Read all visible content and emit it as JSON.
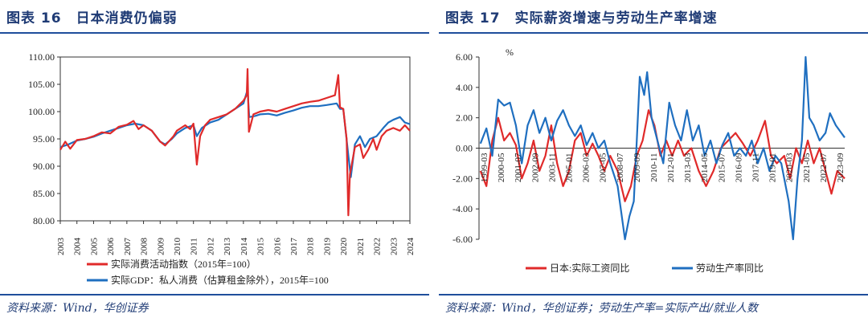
{
  "left": {
    "figure_title": "图表 16　日本消费仍偏弱",
    "source": "资料来源：Wind，华创证券"
  },
  "right": {
    "figure_title": "图表 17　实际薪资增速与劳动生产率增速",
    "source": "资料来源：Wind，华创证券；劳动生产率=实际产出/就业人数"
  },
  "colors": {
    "red": "#e02a2a",
    "blue": "#1f6fc0",
    "brand": "#1f3b75"
  },
  "chart_data": [
    {
      "type": "line",
      "ylim": [
        80,
        110
      ],
      "yticks": [
        "110.00",
        "105.00",
        "100.00",
        "95.00",
        "90.00",
        "85.00",
        "80.00"
      ],
      "xticks": [
        "2003",
        "2004",
        "2005",
        "2006",
        "2007",
        "2008",
        "2009",
        "2010",
        "2011",
        "2012",
        "2013",
        "2014",
        "2015",
        "2016",
        "2017",
        "2018",
        "2019",
        "2020",
        "2021",
        "2022",
        "2023",
        "2024"
      ],
      "xlim": [
        2003,
        2024
      ],
      "legend_position": "bottom",
      "series": [
        {
          "name": "实际消费活动指数（2015年=100）",
          "color": "#e02a2a",
          "points": [
            [
              2003,
              93.0
            ],
            [
              2003.3,
              94.5
            ],
            [
              2003.6,
              93.2
            ],
            [
              2004,
              94.8
            ],
            [
              2004.5,
              95.0
            ],
            [
              2005,
              95.5
            ],
            [
              2005.5,
              96.2
            ],
            [
              2006,
              96.0
            ],
            [
              2006.5,
              97.2
            ],
            [
              2007,
              97.6
            ],
            [
              2007.4,
              98.3
            ],
            [
              2007.7,
              96.8
            ],
            [
              2008,
              97.5
            ],
            [
              2008.5,
              96.5
            ],
            [
              2009,
              94.5
            ],
            [
              2009.3,
              93.8
            ],
            [
              2009.8,
              95.5
            ],
            [
              2010,
              96.5
            ],
            [
              2010.5,
              97.5
            ],
            [
              2010.8,
              96.8
            ],
            [
              2011,
              97.8
            ],
            [
              2011.2,
              90.3
            ],
            [
              2011.4,
              95.5
            ],
            [
              2011.7,
              97.5
            ],
            [
              2012,
              98.5
            ],
            [
              2012.5,
              99.0
            ],
            [
              2013,
              99.5
            ],
            [
              2013.5,
              100.5
            ],
            [
              2014,
              102.0
            ],
            [
              2014.2,
              103.0
            ],
            [
              2014.25,
              107.8
            ],
            [
              2014.33,
              96.3
            ],
            [
              2014.6,
              99.5
            ],
            [
              2015,
              100.0
            ],
            [
              2015.5,
              100.3
            ],
            [
              2016,
              100.0
            ],
            [
              2016.5,
              100.5
            ],
            [
              2017,
              101.0
            ],
            [
              2017.5,
              101.5
            ],
            [
              2018,
              101.8
            ],
            [
              2018.5,
              102.0
            ],
            [
              2019,
              102.5
            ],
            [
              2019.5,
              103.0
            ],
            [
              2019.7,
              106.7
            ],
            [
              2019.8,
              100.8
            ],
            [
              2020,
              100.5
            ],
            [
              2020.2,
              95.0
            ],
            [
              2020.3,
              81.0
            ],
            [
              2020.4,
              88.5
            ],
            [
              2020.7,
              93.5
            ],
            [
              2021,
              94.0
            ],
            [
              2021.2,
              91.5
            ],
            [
              2021.5,
              93.0
            ],
            [
              2021.8,
              95.0
            ],
            [
              2022,
              93.0
            ],
            [
              2022.3,
              95.5
            ],
            [
              2022.6,
              96.5
            ],
            [
              2023,
              97.0
            ],
            [
              2023.4,
              96.5
            ],
            [
              2023.7,
              97.5
            ],
            [
              2024,
              96.5
            ]
          ]
        },
        {
          "name": "实际GDP：私人消费（估算租金除外），2015年=100",
          "color": "#1f6fc0",
          "points": [
            [
              2003,
              93.5
            ],
            [
              2003.5,
              94.0
            ],
            [
              2004,
              94.7
            ],
            [
              2004.5,
              95.0
            ],
            [
              2005,
              95.4
            ],
            [
              2005.5,
              96.0
            ],
            [
              2006,
              96.5
            ],
            [
              2006.5,
              97.0
            ],
            [
              2007,
              97.5
            ],
            [
              2007.5,
              97.8
            ],
            [
              2008,
              97.5
            ],
            [
              2008.5,
              96.5
            ],
            [
              2009,
              94.5
            ],
            [
              2009.3,
              94.0
            ],
            [
              2009.7,
              95.0
            ],
            [
              2010,
              96.0
            ],
            [
              2010.5,
              97.0
            ],
            [
              2011,
              97.5
            ],
            [
              2011.2,
              95.5
            ],
            [
              2011.5,
              97.0
            ],
            [
              2012,
              98.0
            ],
            [
              2012.5,
              98.5
            ],
            [
              2013,
              99.5
            ],
            [
              2013.5,
              100.5
            ],
            [
              2014,
              101.5
            ],
            [
              2014.25,
              104.0
            ],
            [
              2014.35,
              99.0
            ],
            [
              2014.7,
              99.2
            ],
            [
              2015,
              99.5
            ],
            [
              2015.5,
              99.6
            ],
            [
              2016,
              99.3
            ],
            [
              2016.5,
              99.8
            ],
            [
              2017,
              100.2
            ],
            [
              2017.5,
              100.7
            ],
            [
              2018,
              101.0
            ],
            [
              2018.5,
              101.0
            ],
            [
              2019,
              101.2
            ],
            [
              2019.6,
              101.5
            ],
            [
              2019.8,
              100.5
            ],
            [
              2020,
              100.5
            ],
            [
              2020.3,
              92.0
            ],
            [
              2020.45,
              88.0
            ],
            [
              2020.7,
              94.0
            ],
            [
              2021,
              95.5
            ],
            [
              2021.3,
              93.5
            ],
            [
              2021.6,
              95.0
            ],
            [
              2022,
              95.5
            ],
            [
              2022.4,
              97.0
            ],
            [
              2022.7,
              98.0
            ],
            [
              2023,
              98.5
            ],
            [
              2023.4,
              99.0
            ],
            [
              2023.7,
              98.0
            ],
            [
              2024,
              97.7
            ]
          ]
        }
      ]
    },
    {
      "type": "line",
      "ylabel": "%",
      "ylim": [
        -6,
        6
      ],
      "yticks": [
        "6.00",
        "4.00",
        "2.00",
        "0.00",
        "-2.00",
        "-4.00",
        "-6.00"
      ],
      "xticks": [
        "1999-03",
        "2000-05",
        "2001-07",
        "2002-09",
        "2003-11",
        "2005-01",
        "2006-03",
        "2007-05",
        "2008-07",
        "2009-09",
        "2010-11",
        "2012-01",
        "2013-03",
        "2014-05",
        "2015-07",
        "2016-09",
        "2017-11",
        "2019-01",
        "2020-03",
        "2021-05",
        "2022-07",
        "2023-09"
      ],
      "xlim": [
        1999.1,
        2023.9
      ],
      "legend_position": "bottom",
      "series": [
        {
          "name": "日本:实际工资同比",
          "color": "#e02a2a",
          "points": [
            [
              1999.2,
              -1.5
            ],
            [
              1999.6,
              -2.5
            ],
            [
              2000,
              0.5
            ],
            [
              2000.4,
              2.0
            ],
            [
              2000.8,
              0.5
            ],
            [
              2001.2,
              1.0
            ],
            [
              2001.6,
              0.2
            ],
            [
              2002,
              -2.0
            ],
            [
              2002.4,
              -1.0
            ],
            [
              2002.8,
              0.5
            ],
            [
              2003.2,
              -1.5
            ],
            [
              2003.6,
              -0.5
            ],
            [
              2004,
              1.5
            ],
            [
              2004.4,
              -1.0
            ],
            [
              2004.8,
              -2.5
            ],
            [
              2005.2,
              -1.5
            ],
            [
              2005.6,
              0.5
            ],
            [
              2006,
              1.0
            ],
            [
              2006.4,
              -0.5
            ],
            [
              2006.8,
              0.3
            ],
            [
              2007.2,
              -0.5
            ],
            [
              2007.6,
              -1.5
            ],
            [
              2008,
              -0.5
            ],
            [
              2008.5,
              -1.5
            ],
            [
              2009,
              -3.5
            ],
            [
              2009.4,
              -2.5
            ],
            [
              2009.8,
              -0.5
            ],
            [
              2010.2,
              0.5
            ],
            [
              2010.6,
              2.5
            ],
            [
              2011,
              1.5
            ],
            [
              2011.4,
              -0.5
            ],
            [
              2011.8,
              0.5
            ],
            [
              2012.2,
              -0.5
            ],
            [
              2012.6,
              0.5
            ],
            [
              2013,
              -0.5
            ],
            [
              2013.5,
              0.0
            ],
            [
              2014,
              -1.5
            ],
            [
              2014.5,
              -2.5
            ],
            [
              2015,
              -1.5
            ],
            [
              2015.5,
              0.0
            ],
            [
              2016,
              0.5
            ],
            [
              2016.5,
              1.0
            ],
            [
              2017,
              0.3
            ],
            [
              2017.5,
              -0.5
            ],
            [
              2018,
              0.5
            ],
            [
              2018.5,
              1.8
            ],
            [
              2018.9,
              -0.5
            ],
            [
              2019.3,
              -1.0
            ],
            [
              2019.8,
              -0.5
            ],
            [
              2020.2,
              -2.0
            ],
            [
              2020.6,
              0.0
            ],
            [
              2021,
              -1.0
            ],
            [
              2021.4,
              0.5
            ],
            [
              2021.8,
              -1.0
            ],
            [
              2022.2,
              0.0
            ],
            [
              2022.6,
              -1.5
            ],
            [
              2023,
              -3.0
            ],
            [
              2023.4,
              -1.5
            ],
            [
              2023.9,
              -2.0
            ]
          ]
        },
        {
          "name": "劳动生产率同比",
          "color": "#1f6fc0",
          "points": [
            [
              1999.2,
              0.3
            ],
            [
              1999.6,
              1.3
            ],
            [
              2000,
              -0.5
            ],
            [
              2000.4,
              3.2
            ],
            [
              2000.8,
              2.8
            ],
            [
              2001.2,
              3.0
            ],
            [
              2001.6,
              1.5
            ],
            [
              2002,
              -1.0
            ],
            [
              2002.4,
              1.5
            ],
            [
              2002.8,
              2.5
            ],
            [
              2003.2,
              1.0
            ],
            [
              2003.6,
              2.0
            ],
            [
              2004,
              0.5
            ],
            [
              2004.4,
              1.8
            ],
            [
              2004.8,
              2.5
            ],
            [
              2005.2,
              1.5
            ],
            [
              2005.6,
              0.8
            ],
            [
              2006,
              1.5
            ],
            [
              2006.4,
              0.2
            ],
            [
              2006.8,
              1.0
            ],
            [
              2007.2,
              0.0
            ],
            [
              2007.6,
              0.5
            ],
            [
              2008,
              -1.0
            ],
            [
              2008.5,
              -2.5
            ],
            [
              2009,
              -6.0
            ],
            [
              2009.3,
              -4.5
            ],
            [
              2009.6,
              -3.5
            ],
            [
              2009.8,
              0.5
            ],
            [
              2010,
              4.7
            ],
            [
              2010.3,
              3.5
            ],
            [
              2010.5,
              5.0
            ],
            [
              2010.8,
              2.0
            ],
            [
              2011.2,
              0.5
            ],
            [
              2011.6,
              -1.0
            ],
            [
              2012,
              3.0
            ],
            [
              2012.4,
              1.5
            ],
            [
              2012.8,
              0.5
            ],
            [
              2013.2,
              2.5
            ],
            [
              2013.6,
              0.5
            ],
            [
              2014,
              1.5
            ],
            [
              2014.4,
              -0.5
            ],
            [
              2014.8,
              0.5
            ],
            [
              2015.2,
              -1.0
            ],
            [
              2015.6,
              0.2
            ],
            [
              2016,
              1.0
            ],
            [
              2016.4,
              -0.5
            ],
            [
              2016.8,
              0.0
            ],
            [
              2017.2,
              -0.5
            ],
            [
              2017.6,
              0.5
            ],
            [
              2018,
              -1.0
            ],
            [
              2018.4,
              0.0
            ],
            [
              2018.8,
              -1.5
            ],
            [
              2019.2,
              -0.5
            ],
            [
              2019.6,
              -1.0
            ],
            [
              2019.9,
              -2.5
            ],
            [
              2020.1,
              -3.5
            ],
            [
              2020.4,
              -6.0
            ],
            [
              2020.7,
              -2.0
            ],
            [
              2021,
              0.5
            ],
            [
              2021.25,
              6.0
            ],
            [
              2021.5,
              2.0
            ],
            [
              2021.8,
              1.5
            ],
            [
              2022.2,
              0.5
            ],
            [
              2022.6,
              1.0
            ],
            [
              2022.9,
              2.3
            ],
            [
              2023.3,
              1.5
            ],
            [
              2023.9,
              0.7
            ]
          ]
        }
      ]
    }
  ]
}
